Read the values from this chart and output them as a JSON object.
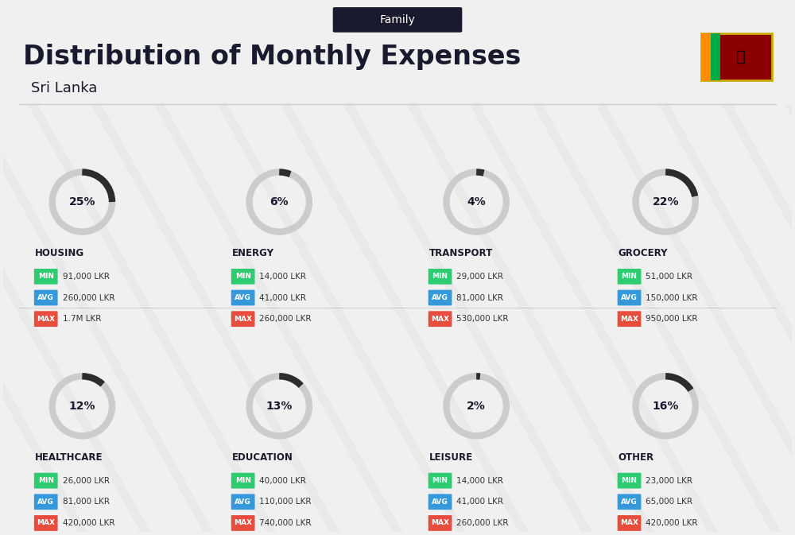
{
  "title": "Distribution of Monthly Expenses",
  "subtitle": "Family",
  "country": "Sri Lanka",
  "background_color": "#f0f0f0",
  "header_bg": "#1a1a2e",
  "categories": [
    {
      "name": "HOUSING",
      "percent": 25,
      "min": "91,000 LKR",
      "avg": "260,000 LKR",
      "max": "1.7M LKR",
      "col": 0,
      "row": 0
    },
    {
      "name": "ENERGY",
      "percent": 6,
      "min": "14,000 LKR",
      "avg": "41,000 LKR",
      "max": "260,000 LKR",
      "col": 1,
      "row": 0
    },
    {
      "name": "TRANSPORT",
      "percent": 4,
      "min": "29,000 LKR",
      "avg": "81,000 LKR",
      "max": "530,000 LKR",
      "col": 2,
      "row": 0
    },
    {
      "name": "GROCERY",
      "percent": 22,
      "min": "51,000 LKR",
      "avg": "150,000 LKR",
      "max": "950,000 LKR",
      "col": 3,
      "row": 0
    },
    {
      "name": "HEALTHCARE",
      "percent": 12,
      "min": "26,000 LKR",
      "avg": "81,000 LKR",
      "max": "420,000 LKR",
      "col": 0,
      "row": 1
    },
    {
      "name": "EDUCATION",
      "percent": 13,
      "min": "40,000 LKR",
      "avg": "110,000 LKR",
      "max": "740,000 LKR",
      "col": 1,
      "row": 1
    },
    {
      "name": "LEISURE",
      "percent": 2,
      "min": "14,000 LKR",
      "avg": "41,000 LKR",
      "max": "260,000 LKR",
      "col": 2,
      "row": 1
    },
    {
      "name": "OTHER",
      "percent": 16,
      "min": "23,000 LKR",
      "avg": "65,000 LKR",
      "max": "420,000 LKR",
      "col": 3,
      "row": 1
    }
  ],
  "min_color": "#2ecc71",
  "avg_color": "#3498db",
  "max_color": "#e74c3c",
  "arc_bg_color": "#cccccc",
  "arc_fill_color": "#2c2c2c",
  "percent_color": "#1a1a2e",
  "label_color": "#1a1a2e",
  "value_color": "#333333"
}
